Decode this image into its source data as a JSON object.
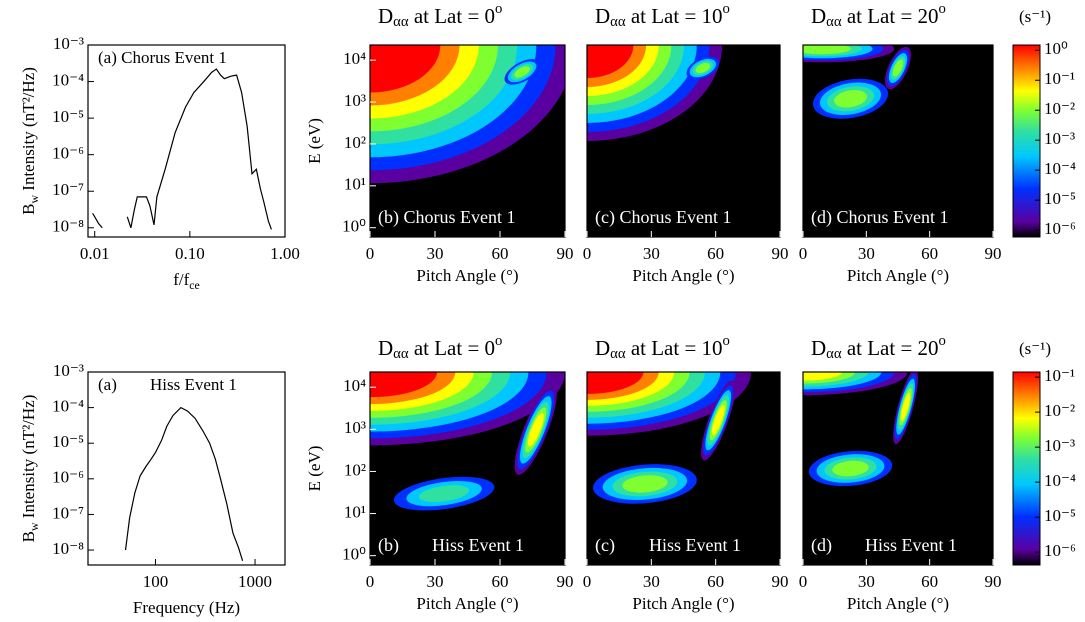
{
  "chart_data": [
    {
      "type": "line",
      "annotation": [
        "(a) Chorus Event 1"
      ],
      "x_label": {
        "base": "f/f",
        "sub": "ce"
      },
      "y_label": {
        "base": "B",
        "sub": "w",
        "text": " Intensity (nT²/Hz)"
      },
      "xscale": "log",
      "yscale": "log",
      "xlim": [
        0.0085,
        1
      ],
      "ylim": [
        5.6e-09,
        0.001
      ],
      "xticks": [
        0.01,
        {
          "value": 0.1,
          "label": "0.10"
        },
        {
          "value": 1,
          "label": "1.00"
        }
      ],
      "yticks": [
        {
          "value": 1e-08,
          "label": "10⁻⁸"
        },
        {
          "value": 1e-07,
          "label": "10⁻⁷"
        },
        {
          "value": 1e-06,
          "label": "10⁻⁶"
        },
        {
          "value": 1e-05,
          "label": "10⁻⁵"
        },
        {
          "value": 0.0001,
          "label": "10⁻⁴"
        },
        {
          "value": 0.001,
          "label": "10⁻³"
        }
      ],
      "x": [
        0.0095,
        0.01,
        0.011,
        0.012,
        0.018,
        0.022,
        0.024,
        0.026,
        0.028,
        0.035,
        0.038,
        0.042,
        0.045,
        0.055,
        0.07,
        0.09,
        0.11,
        0.14,
        0.17,
        0.19,
        0.21,
        0.23,
        0.27,
        0.31,
        0.35,
        0.4,
        0.45,
        0.5,
        0.55,
        0.6,
        0.67,
        0.72
      ],
      "values": [
        2.5e-08,
        2e-08,
        1.3e-08,
        1e-08,
        null,
        2e-08,
        1e-08,
        3e-08,
        7e-08,
        7e-08,
        4e-08,
        1.2e-08,
        7e-08,
        4e-07,
        4e-06,
        2e-05,
        5e-05,
        0.0001,
        0.00018,
        0.00022,
        0.00015,
        0.00012,
        0.00014,
        0.00015,
        5e-05,
        6e-06,
        3e-07,
        4e-07,
        1.2e-07,
        5e-08,
        1.5e-08,
        9e-09
      ],
      "color": "#000000"
    },
    {
      "type": "heatmap",
      "title": {
        "base": "D",
        "sub": "αα",
        "text": " at Lat = 0",
        "sup": "o"
      },
      "annotation": [
        "(b) Chorus Event 1"
      ],
      "x_label": "Pitch Angle (°)",
      "y_label": "E (eV)",
      "xlim": [
        0,
        90
      ],
      "xticks": [
        0,
        30,
        60,
        90
      ],
      "yscale": "log",
      "ylim": [
        0.6,
        23000
      ],
      "yticks": [
        {
          "value": 1,
          "label": "10⁰"
        },
        {
          "value": 10,
          "label": "10¹"
        },
        {
          "value": 100,
          "label": "10²"
        },
        {
          "value": 1000,
          "label": "10³"
        },
        {
          "value": 10000,
          "label": "10⁴"
        }
      ]
    },
    {
      "type": "heatmap",
      "title": {
        "base": "D",
        "sub": "αα",
        "text": " at Lat = 10",
        "sup": "o"
      },
      "annotation": [
        "(c) Chorus Event 1"
      ],
      "x_label": "Pitch Angle (°)",
      "xlim": [
        0,
        90
      ],
      "xticks": [
        0,
        30,
        60,
        90
      ],
      "yscale": "log",
      "ylim": [
        0.6,
        23000
      ]
    },
    {
      "type": "heatmap",
      "title": {
        "base": "D",
        "sub": "αα",
        "text": " at Lat = 20",
        "sup": "o"
      },
      "annotation": [
        "(d) Chorus Event 1"
      ],
      "x_label": "Pitch Angle (°)",
      "xlim": [
        0,
        90
      ],
      "xticks": [
        0,
        30,
        60,
        90
      ],
      "yscale": "log",
      "ylim": [
        0.6,
        23000
      ]
    },
    {
      "type": "colorbar",
      "unit": "(s⁻¹)",
      "yscale": "log",
      "ylim": [
        5.9e-07,
        1.5
      ],
      "yticks": [
        {
          "value": 1,
          "label": "10⁰"
        },
        {
          "value": 0.1,
          "label": "10⁻¹"
        },
        {
          "value": 0.01,
          "label": "10⁻²"
        },
        {
          "value": 0.001,
          "label": "10⁻³"
        },
        {
          "value": 0.0001,
          "label": "10⁻⁴"
        },
        {
          "value": 1e-05,
          "label": "10⁻⁵"
        },
        {
          "value": 1e-06,
          "label": "10⁻⁶"
        }
      ]
    },
    {
      "type": "line",
      "annotation": [
        "(a)",
        "Hiss Event 1"
      ],
      "x_label": "Frequency (Hz)",
      "y_label": {
        "base": "B",
        "sub": "w",
        "text": " Intensity (nT²/Hz)"
      },
      "xscale": "log",
      "yscale": "log",
      "xlim": [
        21,
        2000
      ],
      "ylim": [
        3.8e-09,
        0.001
      ],
      "xticks": [
        100,
        1000
      ],
      "yticks": [
        {
          "value": 1e-08,
          "label": "10⁻⁸"
        },
        {
          "value": 1e-07,
          "label": "10⁻⁷"
        },
        {
          "value": 1e-06,
          "label": "10⁻⁶"
        },
        {
          "value": 1e-05,
          "label": "10⁻⁵"
        },
        {
          "value": 0.0001,
          "label": "10⁻⁴"
        },
        {
          "value": 0.001,
          "label": "10⁻³"
        }
      ],
      "x": [
        50,
        55,
        62,
        70,
        80,
        90,
        100,
        115,
        130,
        150,
        180,
        210,
        250,
        300,
        350,
        400,
        450,
        520,
        600,
        680,
        750
      ],
      "values": [
        1e-08,
        8e-08,
        4e-07,
        1.2e-06,
        2.2e-06,
        3.5e-06,
        5.5e-06,
        1.2e-05,
        3e-05,
        6e-05,
        0.0001,
        8e-05,
        5e-05,
        2.2e-05,
        1e-05,
        3.5e-06,
        1e-06,
        2e-07,
        3e-08,
        1.2e-08,
        5e-09
      ],
      "color": "#000000"
    },
    {
      "type": "heatmap",
      "title": {
        "base": "D",
        "sub": "αα",
        "text": " at Lat = 0",
        "sup": "o"
      },
      "annotation": [
        "(b)",
        "Hiss Event 1"
      ],
      "x_label": "Pitch Angle (°)",
      "y_label": "E (eV)",
      "xlim": [
        0,
        90
      ],
      "xticks": [
        0,
        30,
        60,
        90
      ],
      "yscale": "log",
      "ylim": [
        0.6,
        23000
      ],
      "yticks": [
        {
          "value": 1,
          "label": "10⁰"
        },
        {
          "value": 10,
          "label": "10¹"
        },
        {
          "value": 100,
          "label": "10²"
        },
        {
          "value": 1000,
          "label": "10³"
        },
        {
          "value": 10000,
          "label": "10⁴"
        }
      ]
    },
    {
      "type": "heatmap",
      "title": {
        "base": "D",
        "sub": "αα",
        "text": " at Lat = 10",
        "sup": "o"
      },
      "annotation": [
        "(c)",
        "Hiss Event 1"
      ],
      "x_label": "Pitch Angle (°)",
      "xlim": [
        0,
        90
      ],
      "xticks": [
        0,
        30,
        60,
        90
      ],
      "yscale": "log",
      "ylim": [
        0.6,
        23000
      ]
    },
    {
      "type": "heatmap",
      "title": {
        "base": "D",
        "sub": "αα",
        "text": " at Lat = 20",
        "sup": "o"
      },
      "annotation": [
        "(d)",
        "Hiss Event 1"
      ],
      "x_label": "Pitch Angle (°)",
      "xlim": [
        0,
        90
      ],
      "xticks": [
        0,
        30,
        60,
        90
      ],
      "yscale": "log",
      "ylim": [
        0.6,
        23000
      ]
    },
    {
      "type": "colorbar",
      "unit": "(s⁻¹)",
      "yscale": "log",
      "ylim": [
        4.3e-07,
        0.14
      ],
      "yticks": [
        {
          "value": 0.1,
          "label": "10⁻¹"
        },
        {
          "value": 0.01,
          "label": "10⁻²"
        },
        {
          "value": 0.001,
          "label": "10⁻³"
        },
        {
          "value": 0.0001,
          "label": "10⁻⁴"
        },
        {
          "value": 1e-05,
          "label": "10⁻⁵"
        },
        {
          "value": 1e-06,
          "label": "10⁻⁶"
        }
      ]
    }
  ]
}
